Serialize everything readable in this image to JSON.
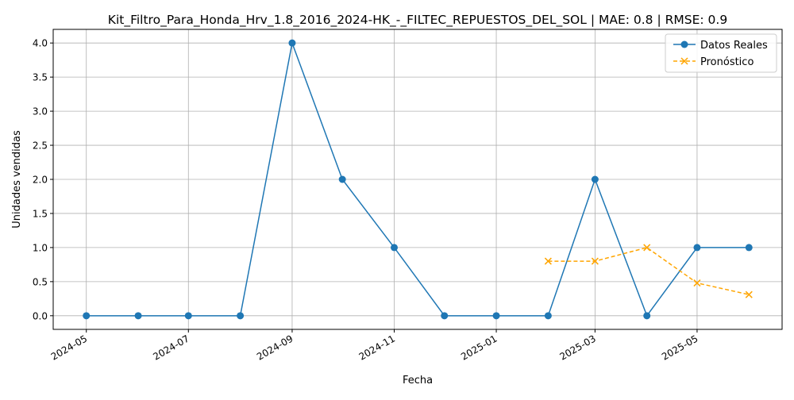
{
  "chart_data": {
    "type": "line",
    "title": "Kit_Filtro_Para_Honda_Hrv_1.8_2016_2024-HK_-_FILTEC_REPUESTOS_DEL_SOL | MAE: 0.8 | RMSE: 0.9",
    "xlabel": "Fecha",
    "ylabel": "Unidades vendidas",
    "ylim": [
      -0.2,
      4.2
    ],
    "yticks": [
      "0.0",
      "0.5",
      "1.0",
      "1.5",
      "2.0",
      "2.5",
      "3.0",
      "3.5",
      "4.0"
    ],
    "xticks": [
      "2024-05",
      "2024-07",
      "2024-09",
      "2024-11",
      "2025-01",
      "2025-03",
      "2025-05"
    ],
    "grid": true,
    "legend_position": "top-right",
    "series": [
      {
        "name": "Datos Reales",
        "color": "#1f77b4",
        "marker": "circle",
        "linestyle": "solid",
        "x": [
          "2024-05-01",
          "2024-06-01",
          "2024-07-01",
          "2024-08-01",
          "2024-09-01",
          "2024-10-01",
          "2024-11-01",
          "2024-12-01",
          "2025-01-01",
          "2025-02-01",
          "2025-03-01",
          "2025-04-01",
          "2025-05-01",
          "2025-06-01"
        ],
        "values": [
          0,
          0,
          0,
          0,
          4,
          2,
          1,
          0,
          0,
          0,
          2,
          0,
          1,
          1
        ]
      },
      {
        "name": "Pronóstico",
        "color": "#ffa500",
        "marker": "x",
        "linestyle": "dashed",
        "x": [
          "2025-02-01",
          "2025-03-01",
          "2025-04-01",
          "2025-05-01",
          "2025-06-01"
        ],
        "values": [
          0.8,
          0.8,
          1.0,
          0.48,
          0.31
        ]
      }
    ]
  }
}
